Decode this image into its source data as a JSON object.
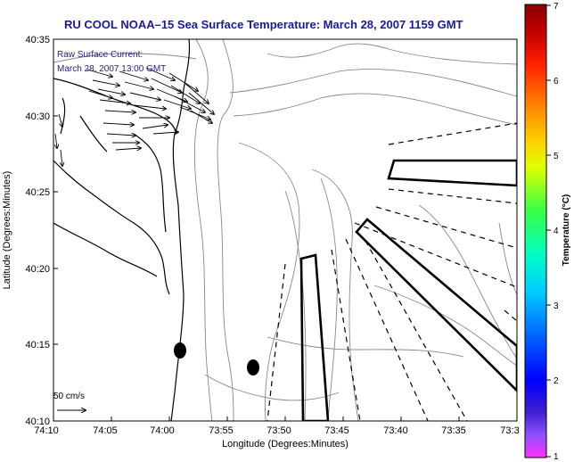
{
  "title": "RU COOL  NOAA–15  Sea Surface Temperature:  March 28, 2007 1159 GMT",
  "current_note": {
    "line1": "Raw Surface Current:",
    "line2": "March 28, 2007 13:00 GMT"
  },
  "scale_arrow_label": "50 cm/s",
  "axes": {
    "xlabel": "Longitude (Degrees:Minutes)",
    "ylabel": "Latitude (Degrees:Minutes)",
    "xticks": [
      "74:10",
      "74:05",
      "74:00",
      "73:55",
      "73:50",
      "73:45",
      "73:40",
      "73:35",
      "73:3"
    ],
    "yticks": [
      "40:35",
      "40:30",
      "40:25",
      "40:20",
      "40:15",
      "40:10"
    ]
  },
  "colorbar": {
    "label": "Temperature (°C)",
    "ticks": [
      "7",
      "6",
      "5",
      "4",
      "3",
      "2",
      "1"
    ],
    "colors": [
      "#8b0000",
      "#d01010",
      "#ff3000",
      "#ff8c00",
      "#ffd000",
      "#d0ff00",
      "#40ff40",
      "#00ffc0",
      "#00c8ff",
      "#0060ff",
      "#0000ff",
      "#3000c0",
      "#8040ff",
      "#ff40ff"
    ]
  }
}
